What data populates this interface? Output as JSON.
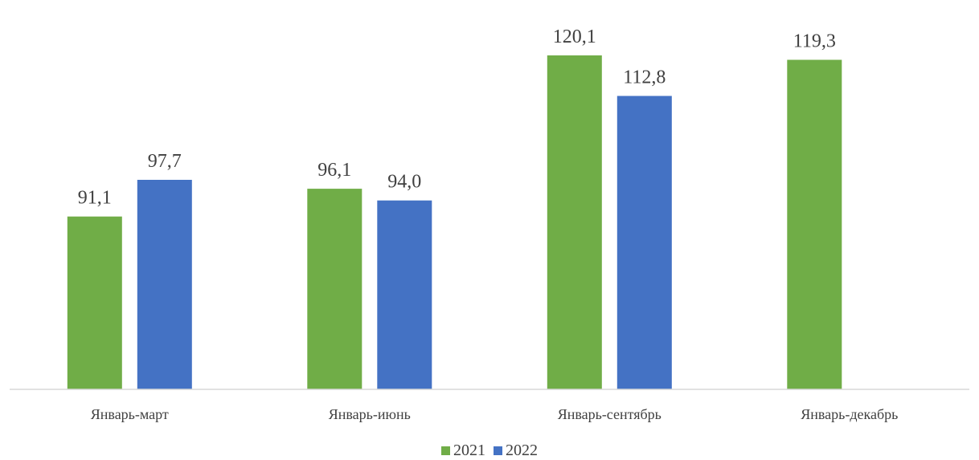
{
  "chart_data": {
    "type": "bar",
    "categories": [
      "Январь-март",
      "Январь-июнь",
      "Январь-сентябрь",
      "Январь-декабрь"
    ],
    "series": [
      {
        "name": "2021",
        "values": [
          91.1,
          96.1,
          120.1,
          119.3
        ],
        "labels": [
          "91,1",
          "96,1",
          "120,1",
          "119,3"
        ],
        "color": "#70AD47"
      },
      {
        "name": "2022",
        "values": [
          97.7,
          94.0,
          112.8,
          null
        ],
        "labels": [
          "97,7",
          "94,0",
          "112,8",
          null
        ],
        "color": "#4472C4"
      }
    ],
    "ylim": [
      60,
      124
    ],
    "grid": false,
    "legend_position": "bottom"
  }
}
